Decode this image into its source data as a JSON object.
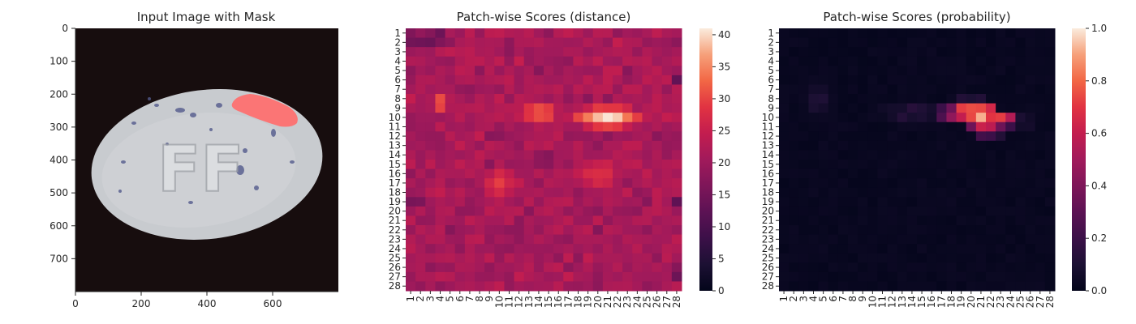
{
  "chart_data": [
    {
      "type": "image",
      "title": "Input Image with Mask",
      "xlim": [
        0,
        800
      ],
      "ylim": [
        800,
        0
      ],
      "x_ticks": [
        0,
        200,
        400,
        600
      ],
      "y_ticks": [
        0,
        100,
        200,
        300,
        400,
        500,
        600,
        700
      ],
      "image_description_colors": {
        "background": "#170d0e",
        "pill": "#c9ccd0",
        "mask": "#ff6b6b"
      },
      "embossed_text": "FF"
    },
    {
      "type": "heatmap",
      "title": "Patch-wise Scores (distance)",
      "rows": 28,
      "cols": 28,
      "colormap": "rocket",
      "vmin": 0,
      "vmax": 41,
      "colorbar_ticks": [
        0,
        5,
        10,
        15,
        20,
        25,
        30,
        35,
        40
      ],
      "x_tick_labels": [
        "1",
        "2",
        "3",
        "4",
        "5",
        "6",
        "7",
        "8",
        "9",
        "10",
        "11",
        "12",
        "13",
        "14",
        "15",
        "16",
        "17",
        "18",
        "19",
        "20",
        "21",
        "22",
        "23",
        "24",
        "25",
        "26",
        "27",
        "28"
      ],
      "y_tick_labels": [
        "1",
        "2",
        "3",
        "4",
        "5",
        "6",
        "7",
        "8",
        "9",
        "10",
        "11",
        "12",
        "13",
        "14",
        "15",
        "16",
        "17",
        "18",
        "19",
        "20",
        "21",
        "22",
        "23",
        "24",
        "25",
        "26",
        "27",
        "28"
      ],
      "description": "Values mostly 20-28; bright region rows 8-13 cols 12-26 reaching ~40; second warm spot rows 7-10 cols 3-5 ~32",
      "hot_regions": [
        {
          "row": 10,
          "col": 21,
          "radius_rows": 1.5,
          "radius_cols": 4.5,
          "peak": 40
        },
        {
          "row": 9.5,
          "col": 14,
          "radius_rows": 2,
          "radius_cols": 3,
          "peak": 33
        },
        {
          "row": 8.5,
          "col": 4,
          "radius_rows": 1.5,
          "radius_cols": 1.5,
          "peak": 33
        },
        {
          "row": 17,
          "col": 10,
          "radius_rows": 2.5,
          "radius_cols": 3,
          "peak": 29
        },
        {
          "row": 16,
          "col": 20,
          "radius_rows": 3,
          "radius_cols": 4,
          "peak": 28
        }
      ]
    },
    {
      "type": "heatmap",
      "title": "Patch-wise Scores (probability)",
      "rows": 28,
      "cols": 28,
      "colormap": "rocket",
      "vmin": 0.0,
      "vmax": 1.0,
      "colorbar_ticks": [
        "0.0",
        "0.2",
        "0.4",
        "0.6",
        "0.8",
        "1.0"
      ],
      "x_tick_labels": [
        "1",
        "2",
        "3",
        "4",
        "5",
        "6",
        "7",
        "8",
        "9",
        "10",
        "11",
        "12",
        "13",
        "14",
        "15",
        "16",
        "17",
        "18",
        "19",
        "20",
        "21",
        "22",
        "23",
        "24",
        "25",
        "26",
        "27",
        "28"
      ],
      "y_tick_labels": [
        "1",
        "2",
        "3",
        "4",
        "5",
        "6",
        "7",
        "8",
        "9",
        "10",
        "11",
        "12",
        "13",
        "14",
        "15",
        "16",
        "17",
        "18",
        "19",
        "20",
        "21",
        "22",
        "23",
        "24",
        "25",
        "26",
        "27",
        "28"
      ],
      "hot_cells": [
        [
          9,
          19,
          0.72
        ],
        [
          9,
          20,
          0.75
        ],
        [
          9,
          21,
          0.74
        ],
        [
          9,
          22,
          0.65
        ],
        [
          10,
          18,
          0.45
        ],
        [
          10,
          19,
          0.6
        ],
        [
          10,
          20,
          0.74
        ],
        [
          10,
          21,
          0.92
        ],
        [
          10,
          22,
          0.7
        ],
        [
          10,
          23,
          0.72
        ],
        [
          10,
          24,
          0.55
        ],
        [
          11,
          20,
          0.35
        ],
        [
          11,
          21,
          0.62
        ],
        [
          11,
          22,
          0.58
        ],
        [
          11,
          23,
          0.35
        ],
        [
          11,
          24,
          0.2
        ],
        [
          9,
          18,
          0.35
        ],
        [
          9,
          17,
          0.2
        ],
        [
          10,
          17,
          0.25
        ],
        [
          12,
          21,
          0.22
        ],
        [
          12,
          22,
          0.2
        ],
        [
          12,
          23,
          0.12
        ],
        [
          8,
          19,
          0.12
        ],
        [
          8,
          20,
          0.1
        ],
        [
          8,
          21,
          0.12
        ]
      ],
      "warm_regions": [
        {
          "row": 9.5,
          "col": 14,
          "radius_rows": 1.2,
          "radius_cols": 3,
          "peak": 0.13
        },
        {
          "row": 8,
          "col": 4.5,
          "radius_rows": 2,
          "radius_cols": 1.5,
          "peak": 0.12
        },
        {
          "row": 10.5,
          "col": 25,
          "radius_rows": 1.2,
          "radius_cols": 1.5,
          "peak": 0.1
        }
      ]
    }
  ]
}
